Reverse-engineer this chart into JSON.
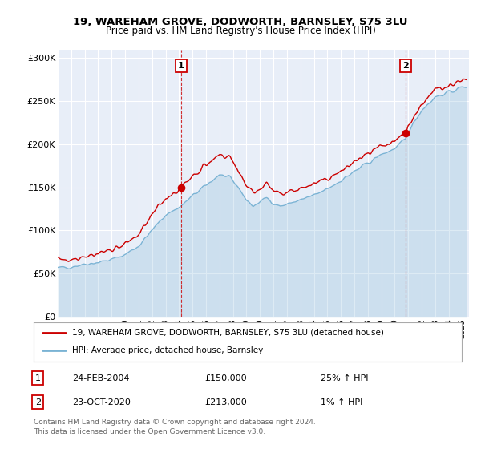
{
  "title": "19, WAREHAM GROVE, DODWORTH, BARNSLEY, S75 3LU",
  "subtitle": "Price paid vs. HM Land Registry's House Price Index (HPI)",
  "ylabel_ticks": [
    "£0",
    "£50K",
    "£100K",
    "£150K",
    "£200K",
    "£250K",
    "£300K"
  ],
  "ytick_values": [
    0,
    50000,
    100000,
    150000,
    200000,
    250000,
    300000
  ],
  "ylim": [
    0,
    310000
  ],
  "xlim_start": 1995.0,
  "xlim_end": 2025.5,
  "hpi_color": "#7ab3d4",
  "price_color": "#cc0000",
  "marker1_year": 2004.15,
  "marker1_value": 150000,
  "marker2_year": 2020.8,
  "marker2_value": 213000,
  "legend_line1": "19, WAREHAM GROVE, DODWORTH, BARNSLEY, S75 3LU (detached house)",
  "legend_line2": "HPI: Average price, detached house, Barnsley",
  "table_row1_num": "1",
  "table_row1_date": "24-FEB-2004",
  "table_row1_price": "£150,000",
  "table_row1_hpi": "25% ↑ HPI",
  "table_row2_num": "2",
  "table_row2_date": "23-OCT-2020",
  "table_row2_price": "£213,000",
  "table_row2_hpi": "1% ↑ HPI",
  "footnote": "Contains HM Land Registry data © Crown copyright and database right 2024.\nThis data is licensed under the Open Government Licence v3.0.",
  "vline1_year": 2004.15,
  "vline2_year": 2020.8,
  "background_color": "#e8eef8"
}
